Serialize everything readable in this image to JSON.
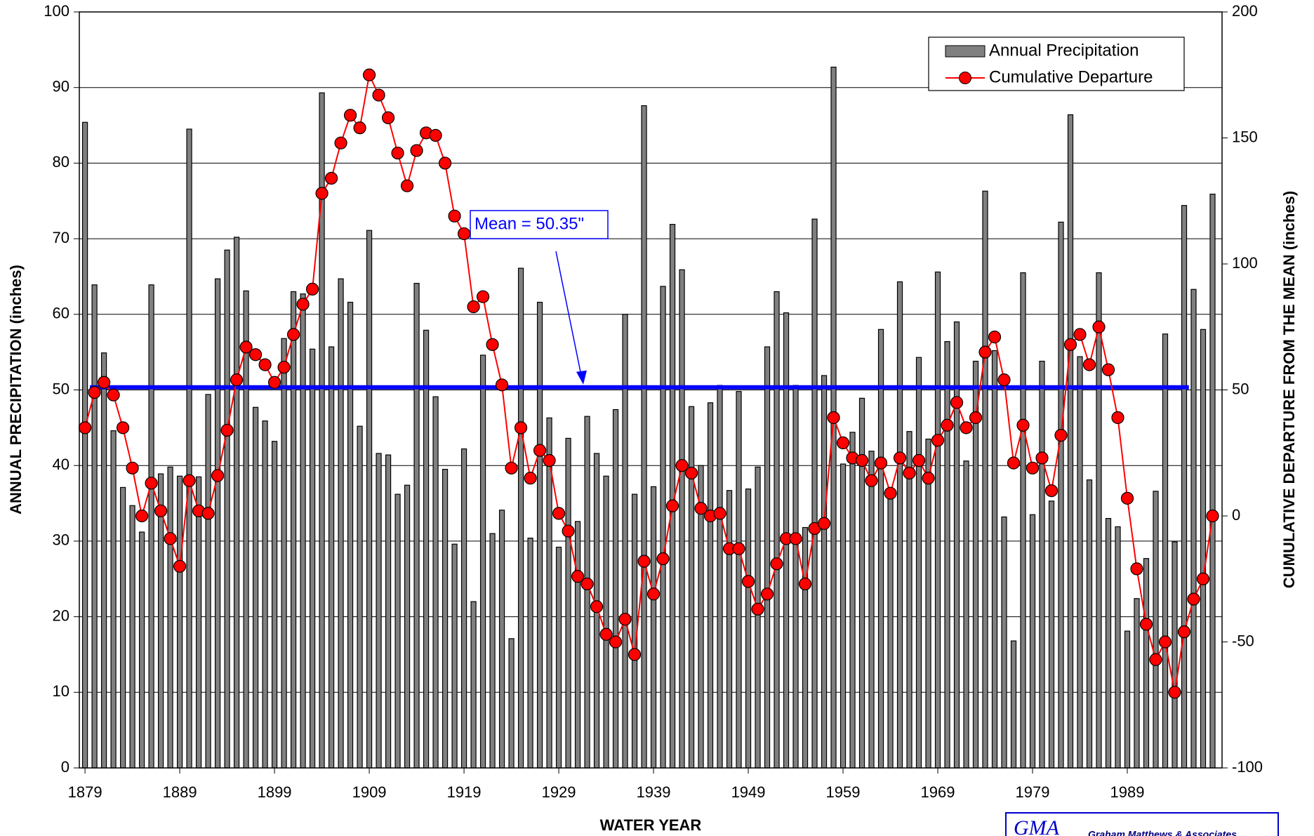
{
  "chart_data": {
    "type": "bar_line",
    "x_label": "WATER YEAR",
    "y_label": "ANNUAL PRECIPITATION (inches)",
    "y2_label": "CUMULATIVE DEPARTURE FROM THE MEAN (inches)",
    "x": [
      1879,
      1880,
      1881,
      1882,
      1883,
      1884,
      1885,
      1886,
      1887,
      1888,
      1889,
      1890,
      1891,
      1892,
      1893,
      1894,
      1895,
      1896,
      1897,
      1898,
      1899,
      1900,
      1901,
      1902,
      1903,
      1904,
      1905,
      1906,
      1907,
      1908,
      1909,
      1910,
      1911,
      1912,
      1913,
      1914,
      1915,
      1916,
      1917,
      1918,
      1919,
      1920,
      1921,
      1922,
      1923,
      1924,
      1925,
      1926,
      1927,
      1928,
      1929,
      1930,
      1931,
      1932,
      1933,
      1934,
      1935,
      1936,
      1937,
      1938,
      1939,
      1940,
      1941,
      1942,
      1943,
      1944,
      1945,
      1946,
      1947,
      1948,
      1949,
      1950,
      1951,
      1952,
      1953,
      1954,
      1955,
      1956,
      1957,
      1958,
      1959,
      1960,
      1961,
      1962,
      1963,
      1964,
      1965,
      1966,
      1967,
      1968,
      1969,
      1970,
      1971,
      1972,
      1973,
      1974,
      1975,
      1976,
      1977,
      1978,
      1979,
      1980,
      1981,
      1982,
      1983,
      1984,
      1985,
      1986,
      1987,
      1988,
      1989,
      1990,
      1991,
      1992,
      1993,
      1994,
      1995,
      1996,
      1997,
      1998
    ],
    "series": [
      {
        "name": "Annual Precipitation",
        "kind": "bar",
        "color": "#808080",
        "axis": "y",
        "values": [
          85.4,
          63.9,
          54.9,
          44.6,
          37.1,
          34.7,
          31.2,
          63.9,
          38.9,
          39.8,
          38.6,
          84.5,
          38.5,
          49.4,
          64.7,
          68.5,
          70.2,
          63.1,
          47.7,
          45.9,
          43.2,
          56.8,
          63.0,
          62.7,
          55.4,
          89.3,
          55.7,
          64.7,
          61.6,
          45.2,
          71.1,
          41.6,
          41.4,
          36.2,
          37.4,
          64.1,
          57.9,
          49.1,
          39.5,
          29.6,
          42.2,
          22.0,
          54.6,
          31.0,
          34.1,
          17.1,
          66.1,
          30.4,
          61.6,
          46.3,
          29.2,
          43.6,
          32.6,
          46.5,
          41.6,
          38.6,
          47.4,
          60.0,
          36.2,
          87.6,
          37.2,
          63.7,
          71.9,
          65.9,
          47.8,
          40.0,
          48.3,
          50.6,
          36.7,
          49.8,
          36.9,
          39.8,
          55.7,
          63.0,
          60.2,
          50.6,
          31.8,
          72.6,
          51.9,
          92.7,
          40.2,
          44.4,
          48.9,
          41.9,
          58.0,
          36.4,
          64.3,
          44.5,
          54.3,
          43.5,
          65.6,
          56.4,
          59.0,
          40.6,
          53.8,
          76.3,
          55.2,
          33.2,
          16.8,
          65.5,
          33.5,
          53.8,
          35.3,
          72.2,
          86.4,
          54.4,
          38.1,
          65.5,
          33.0,
          31.9,
          18.1,
          22.4,
          27.7,
          36.6,
          57.4,
          29.9,
          74.4,
          63.3,
          58.0,
          75.9
        ]
      },
      {
        "name": "Cumulative Departure",
        "kind": "line",
        "color": "#ff0000",
        "axis": "y2",
        "values": [
          35,
          49,
          53,
          48,
          35,
          19,
          0,
          13,
          2,
          -9,
          -20,
          14,
          2,
          1,
          16,
          34,
          54,
          67,
          64,
          60,
          53,
          59,
          72,
          84,
          90,
          128,
          134,
          148,
          159,
          154,
          175,
          167,
          158,
          144,
          131,
          145,
          152,
          151,
          140,
          119,
          112,
          83,
          87,
          68,
          52,
          19,
          35,
          15,
          26,
          22,
          1,
          -6,
          -24,
          -27,
          -36,
          -47,
          -50,
          -41,
          -55,
          -18,
          -31,
          -17,
          4,
          20,
          17,
          3,
          0,
          1,
          -13,
          -13,
          -26,
          -37,
          -31,
          -19,
          -9,
          -9,
          -27,
          -5,
          -3,
          39,
          29,
          23,
          22,
          14,
          21,
          9,
          23,
          17,
          22,
          15,
          30,
          36,
          45,
          35,
          39,
          65,
          71,
          54,
          21,
          36,
          19,
          23,
          10,
          32,
          68,
          72,
          60,
          75,
          58,
          39,
          7,
          -21,
          -43,
          -57,
          -50,
          -70,
          -46,
          -33,
          -25,
          0
        ]
      }
    ],
    "mean_line": {
      "value": 50.35,
      "label": "Mean = 50.35\"",
      "color": "#0000ff"
    },
    "xlim": [
      1878.4,
      1999.0
    ],
    "xticks": [
      1879,
      1889,
      1899,
      1909,
      1919,
      1929,
      1939,
      1949,
      1959,
      1969,
      1979,
      1989
    ],
    "ylim": [
      0,
      100
    ],
    "yticks": [
      0,
      10,
      20,
      30,
      40,
      50,
      60,
      70,
      80,
      90,
      100
    ],
    "y2lim": [
      -100,
      200
    ],
    "y2ticks": [
      -100,
      -50,
      0,
      50,
      100,
      150,
      200
    ],
    "grid": true,
    "legend": "upper right",
    "logo": {
      "mark": "GMA",
      "text": "Graham Matthews & Associates"
    }
  }
}
